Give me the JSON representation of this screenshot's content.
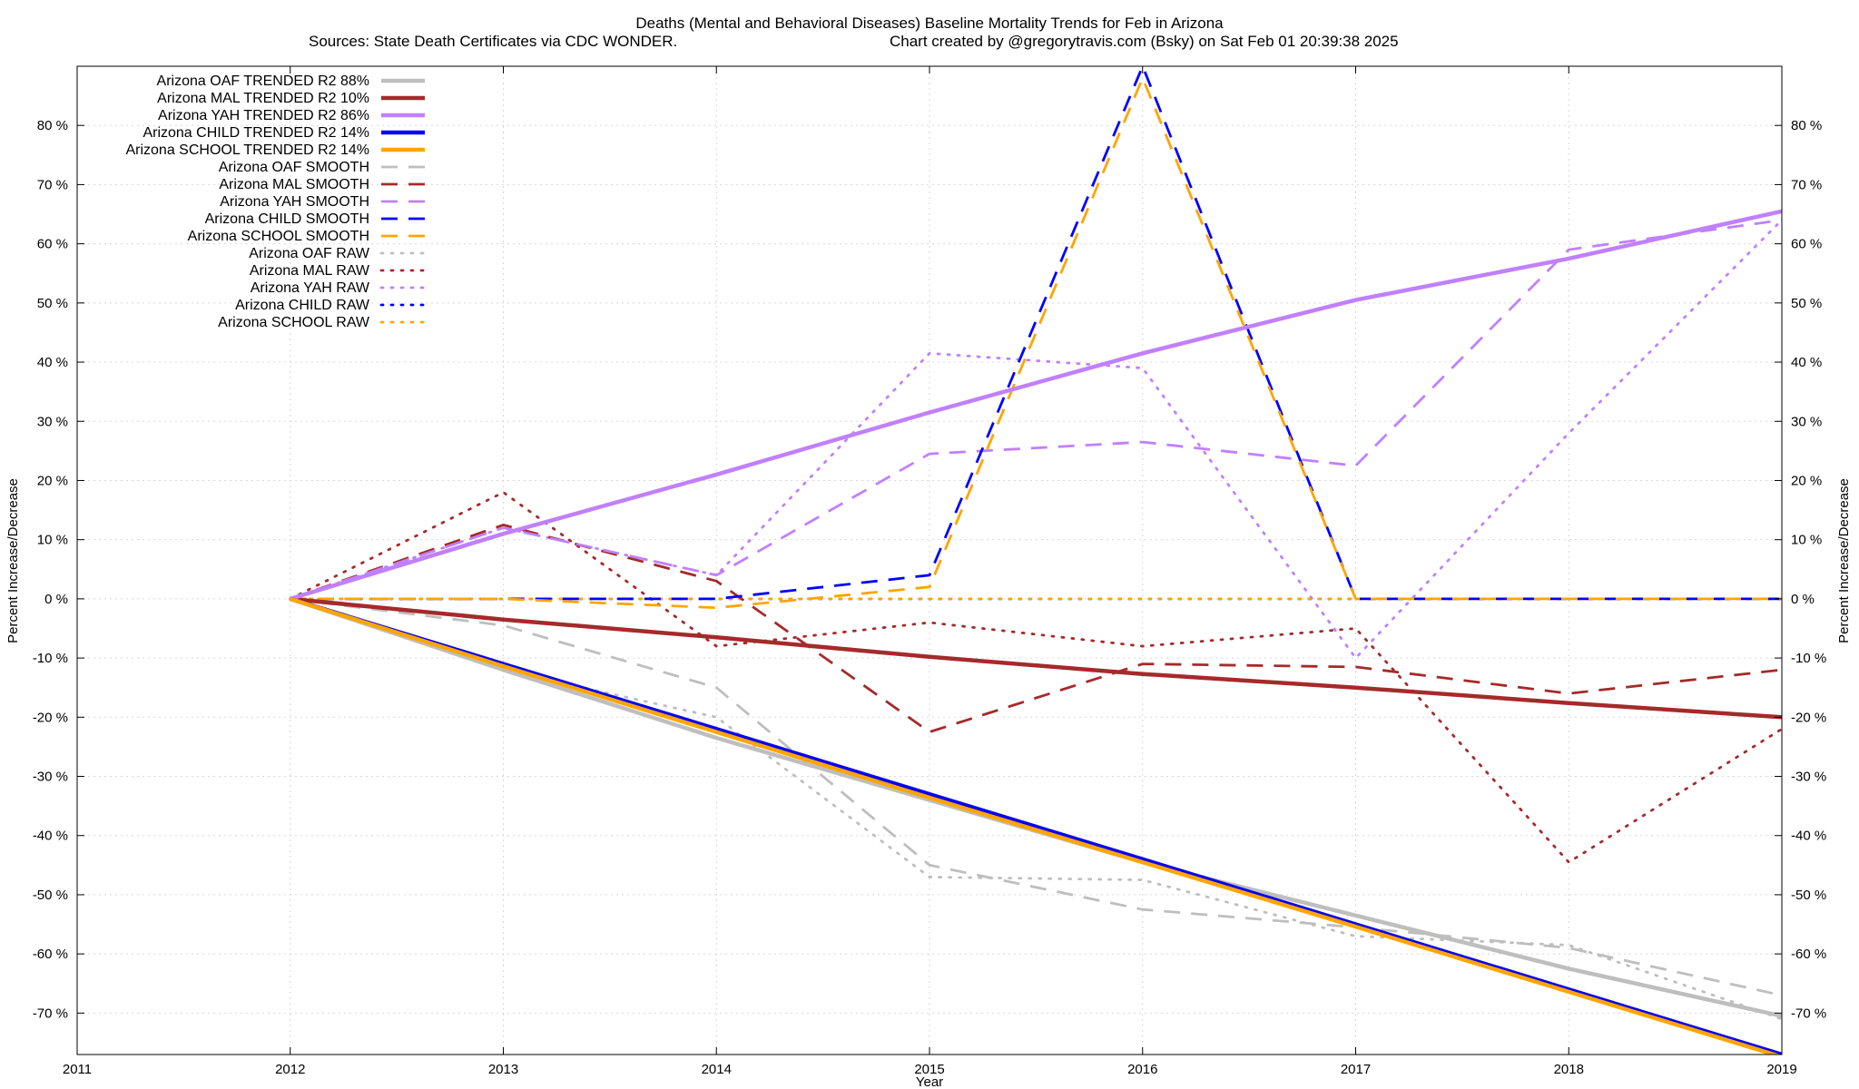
{
  "chart_data": {
    "type": "line",
    "title": "Deaths (Mental and Behavioral Diseases)  Baseline Mortality Trends for Feb in Arizona",
    "subtitle_left": "Sources: State Death Certificates via CDC WONDER.",
    "subtitle_right": "Chart created by @gregorytravis.com (Bsky) on Sat Feb 01 20:39:38 2025",
    "xlabel": "Year",
    "ylabel": "Percent Increase/Decrease",
    "xlim": [
      2011,
      2019
    ],
    "ylim": [
      -77,
      90
    ],
    "x_ticks": [
      2011,
      2012,
      2013,
      2014,
      2015,
      2016,
      2017,
      2018,
      2019
    ],
    "x_tick_labels": [
      "2011",
      "2012",
      "2013",
      "2014",
      "2015",
      "2016",
      "2017",
      "2018",
      "2019"
    ],
    "y_ticks": [
      -70,
      -60,
      -50,
      -40,
      -30,
      -20,
      -10,
      0,
      10,
      20,
      30,
      40,
      50,
      60,
      70,
      80
    ],
    "y_tick_labels": [
      "-70 %",
      "-60 %",
      "-50 %",
      "-40 %",
      "-30 %",
      "-20 %",
      "-10 %",
      "0 %",
      "10 %",
      "20 %",
      "30 %",
      "40 %",
      "50 %",
      "60 %",
      "70 %",
      "80 %"
    ],
    "grid": true,
    "legend_position": "top-left",
    "x": [
      2012,
      2013,
      2014,
      2015,
      2016,
      2017,
      2018,
      2019
    ],
    "series": [
      {
        "name": "Arizona OAF TRENDED R2  88%",
        "style": "trend",
        "color": "#bebebe",
        "values": [
          0,
          -12,
          -23.5,
          -34,
          -44.5,
          -53.5,
          -62.5,
          -70.5
        ]
      },
      {
        "name": "Arizona MAL TRENDED R2  10%",
        "style": "trend",
        "color": "#a52a2a",
        "values": [
          0,
          -3.5,
          -6.5,
          -9.8,
          -12.7,
          -15,
          -17.6,
          -20
        ]
      },
      {
        "name": "Arizona YAH TRENDED R2  86%",
        "style": "trend",
        "color": "#c080ff",
        "values": [
          0,
          11,
          21,
          31.5,
          41.5,
          50.5,
          57.5,
          65.5
        ]
      },
      {
        "name": "Arizona CHILD TRENDED R2  14%",
        "style": "trend",
        "color": "#0000ff",
        "values": [
          0,
          -11,
          -22,
          -33,
          -44,
          -55,
          -66,
          -77
        ]
      },
      {
        "name": "Arizona SCHOOL TRENDED R2  14%",
        "style": "trend",
        "color": "#ffa500",
        "values": [
          0,
          -11.4,
          -22.5,
          -33.6,
          -44.5,
          -55.4,
          -66.4,
          -77.4
        ]
      },
      {
        "name": "Arizona OAF SMOOTH",
        "style": "smooth",
        "color": "#bebebe",
        "values": [
          0,
          -4.5,
          -15,
          -45,
          -52.5,
          -55.5,
          -59,
          -67
        ]
      },
      {
        "name": "Arizona MAL SMOOTH",
        "style": "smooth",
        "color": "#a52a2a",
        "values": [
          0,
          12.5,
          3,
          -22.5,
          -11,
          -11.5,
          -16,
          -12
        ]
      },
      {
        "name": "Arizona YAH SMOOTH",
        "style": "smooth",
        "color": "#c080ff",
        "values": [
          0,
          12,
          4,
          24.5,
          26.5,
          22.5,
          59,
          64
        ]
      },
      {
        "name": "Arizona CHILD SMOOTH",
        "style": "smooth",
        "color": "#0000ff",
        "values": [
          0,
          0,
          0,
          4,
          90,
          0,
          0,
          0
        ]
      },
      {
        "name": "Arizona SCHOOL SMOOTH",
        "style": "smooth",
        "color": "#ffa500",
        "values": [
          0,
          0,
          -1.5,
          2,
          88,
          0,
          0,
          0
        ]
      },
      {
        "name": "Arizona OAF RAW",
        "style": "raw",
        "color": "#bebebe",
        "values": [
          0,
          -12,
          -20,
          -47,
          -47.5,
          -57,
          -58.5,
          -71
        ]
      },
      {
        "name": "Arizona MAL RAW",
        "style": "raw",
        "color": "#a52a2a",
        "values": [
          0,
          18,
          -8,
          -4,
          -8,
          -5,
          -44.5,
          -22
        ]
      },
      {
        "name": "Arizona YAH RAW",
        "style": "raw",
        "color": "#c080ff",
        "values": [
          0,
          12,
          4,
          41.5,
          39,
          -10,
          28,
          64
        ]
      },
      {
        "name": "Arizona CHILD RAW",
        "style": "raw",
        "color": "#0000ff",
        "values": [
          0,
          0,
          0,
          0,
          0,
          0,
          0,
          0
        ]
      },
      {
        "name": "Arizona SCHOOL RAW",
        "style": "raw",
        "color": "#ffa500",
        "values": [
          0,
          0,
          0,
          0,
          0,
          0,
          0,
          0
        ]
      }
    ]
  }
}
